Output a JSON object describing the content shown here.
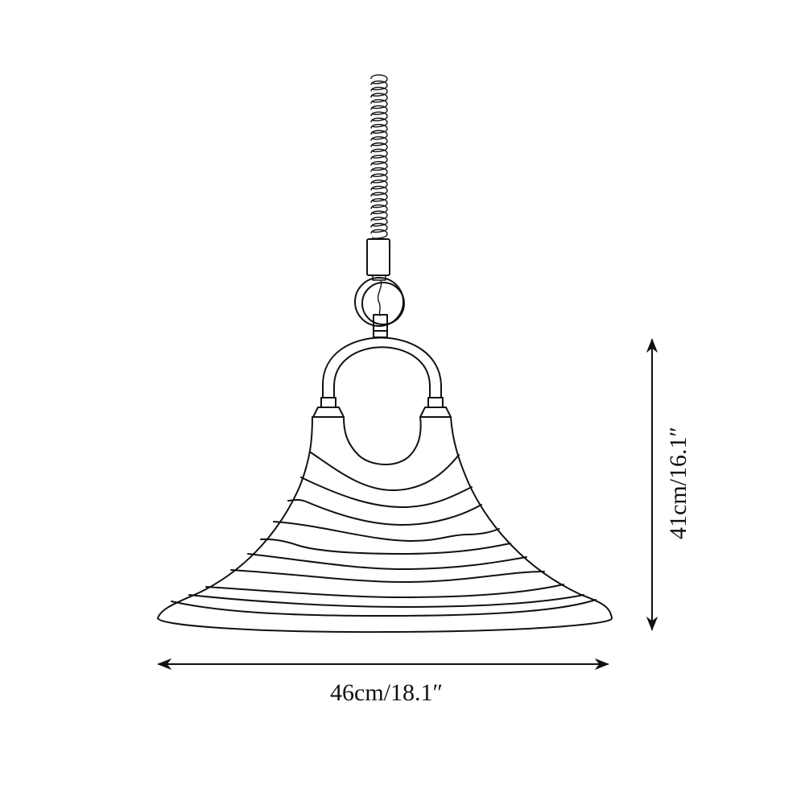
{
  "dimensions": {
    "width_label": "46cm/18.1″",
    "height_label": "41cm/16.1″"
  },
  "colors": {
    "line": "#111111",
    "background": "#ffffff"
  }
}
